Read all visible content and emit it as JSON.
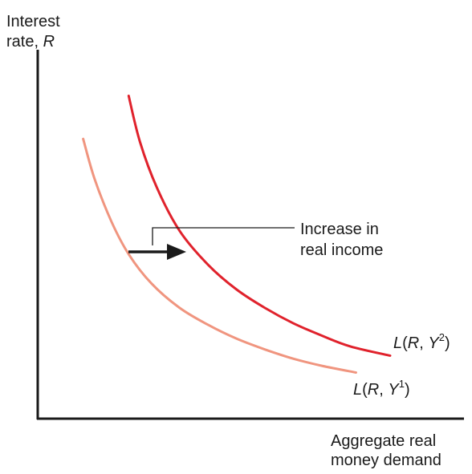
{
  "chart_data": {
    "type": "line",
    "title": "",
    "ylabel": {
      "line1": "Interest",
      "line2_prefix": "rate, ",
      "line2_var": "R"
    },
    "xlabel": {
      "line1": "Aggregate real",
      "line2": "money demand"
    },
    "series": [
      {
        "name": "L(R, Y¹)",
        "label_func": "L",
        "label_open": "(",
        "label_r": "R",
        "label_sep": ", ",
        "label_y": "Y",
        "label_sup": "1",
        "label_close": ")",
        "color": "#f0957f",
        "x": [
          0.8,
          1.0,
          1.3,
          1.6,
          2.0,
          2.5,
          3.0,
          3.5,
          4.0,
          4.5,
          5.0,
          5.6
        ],
        "y": [
          9.1,
          7.8,
          6.4,
          5.35,
          4.4,
          3.6,
          3.05,
          2.6,
          2.25,
          1.95,
          1.72,
          1.5
        ]
      },
      {
        "name": "L(R, Y²)",
        "label_func": "L",
        "label_open": "(",
        "label_r": "R",
        "label_sep": ", ",
        "label_y": "Y",
        "label_sup": "2",
        "label_close": ")",
        "color": "#e0222c",
        "x": [
          1.6,
          1.8,
          2.1,
          2.5,
          3.0,
          3.5,
          4.0,
          4.5,
          5.0,
          5.5,
          6.2
        ],
        "y": [
          10.5,
          9.0,
          7.5,
          6.1,
          5.0,
          4.2,
          3.6,
          3.1,
          2.7,
          2.35,
          2.05
        ]
      }
    ],
    "annotation": {
      "line1": "Increase in",
      "line2": "real income",
      "arrow_color": "#1a1a1a"
    },
    "xlim": [
      0,
      7.5
    ],
    "ylim": [
      0,
      12
    ],
    "axis_color": "#1a1a1a",
    "grid": false,
    "ticks": false
  }
}
